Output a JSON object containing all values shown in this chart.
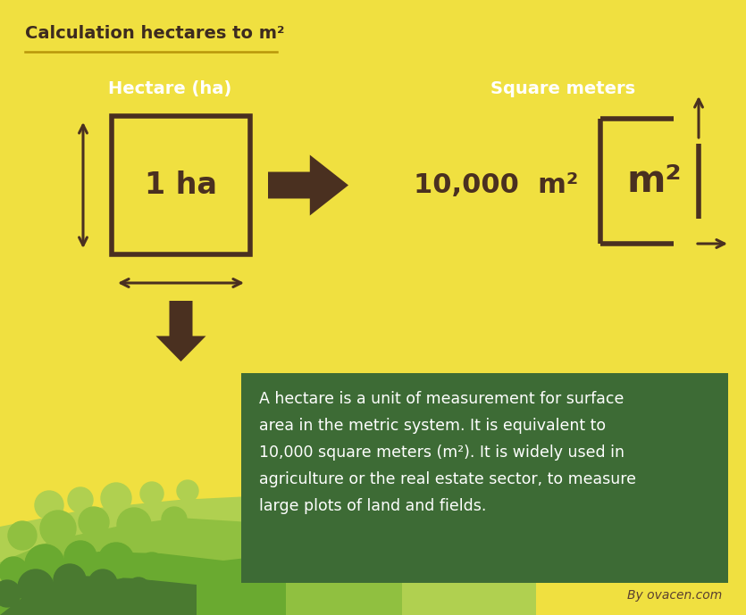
{
  "bg_color": "#F0E040",
  "title": "Calculation hectares to m²",
  "title_color": "#3d2b1f",
  "line_color": "#b8960a",
  "arrow_color": "#4a3020",
  "box_color": "#4a3020",
  "box_fill": "#F0E040",
  "label_ha": "Hectare (ha)",
  "label_sm": "Square meters",
  "text_1ha": "1 ha",
  "text_10000": "10,000  m²",
  "text_m2": "m²",
  "description": "A hectare is a unit of measurement for surface\narea in the metric system. It is equivalent to\n10,000 square meters (m²). It is widely used in\nagriculture or the real estate sector, to measure\nlarge plots of land and fields.",
  "desc_box_color": "#3d6b35",
  "desc_text_color": "#ffffff",
  "credit": "By ovacen.com",
  "credit_color": "#5a4030",
  "grass_dark": "#4a7a30",
  "grass_mid": "#6aaa30",
  "grass_light": "#90c040",
  "grass_pale": "#b0d050"
}
